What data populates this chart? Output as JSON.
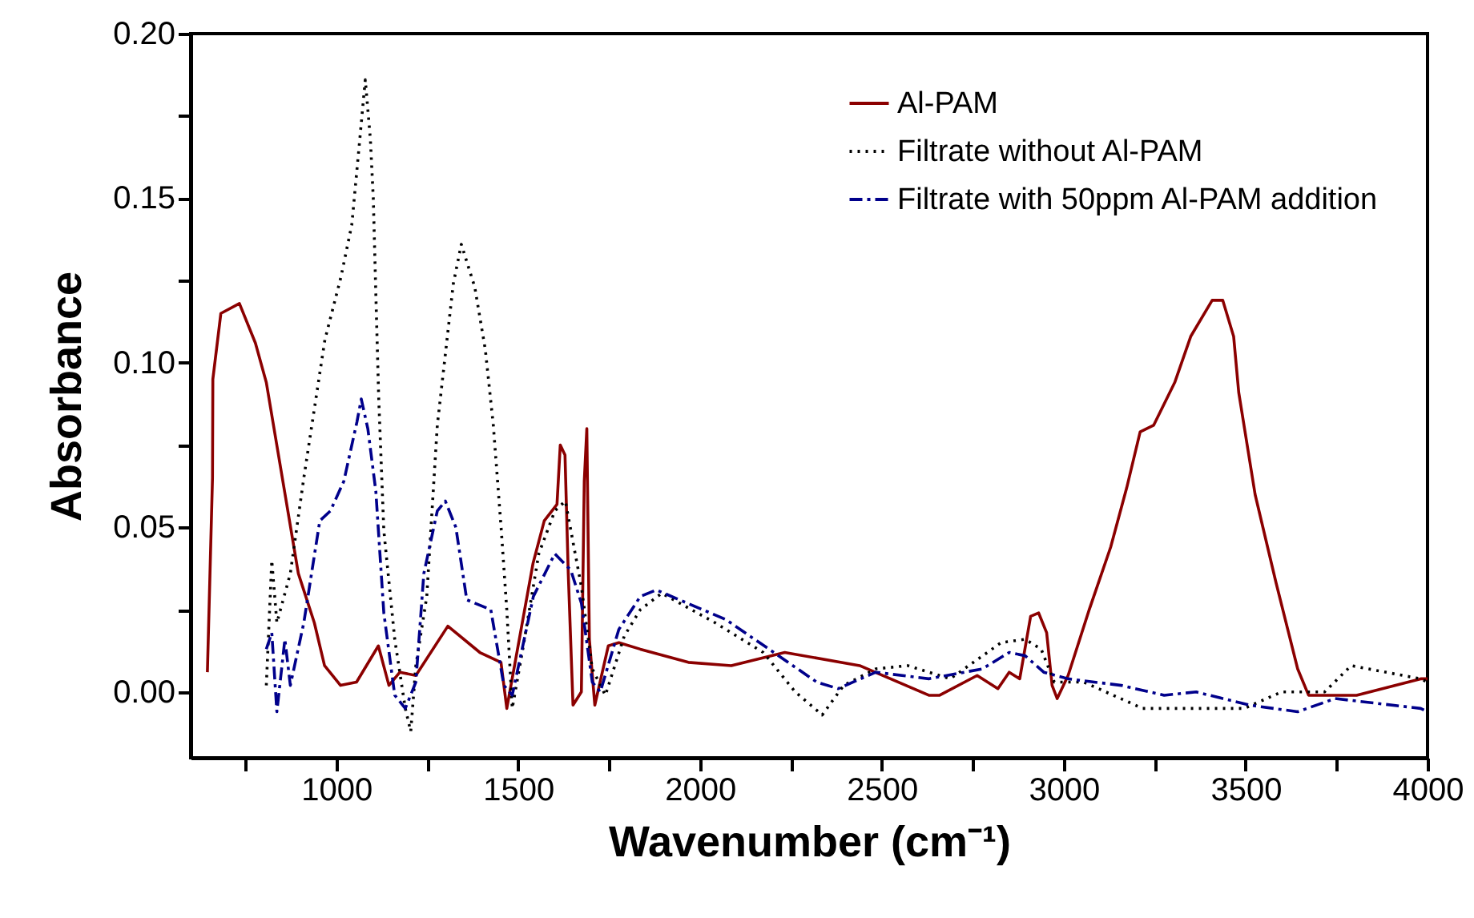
{
  "chart_data": {
    "type": "line",
    "xlabel": "Wavenumber (cm⁻¹)",
    "ylabel": "Absorbance",
    "xlim": [
      600,
      4000
    ],
    "ylim": [
      -0.02,
      0.2
    ],
    "xticks": [
      {
        "value": 750,
        "label": null
      },
      1000,
      {
        "value": 1250,
        "label": null
      },
      1500,
      {
        "value": 1750,
        "label": null
      },
      2000,
      {
        "value": 2250,
        "label": null
      },
      2500,
      {
        "value": 2750,
        "label": null
      },
      3000,
      {
        "value": 3250,
        "label": null
      },
      3500,
      {
        "value": 3750,
        "label": null
      },
      4000
    ],
    "yticks": [
      {
        "value": 0,
        "label": "0.00"
      },
      {
        "value": 0.025,
        "label": null
      },
      0.05,
      {
        "value": 0.075,
        "label": null
      },
      {
        "value": 0.1,
        "label": "0.10"
      },
      {
        "value": 0.125,
        "label": null
      },
      0.15,
      {
        "value": 0.175,
        "label": null
      },
      {
        "value": 0.2,
        "label": "0.20"
      }
    ],
    "grid": false,
    "legend": "top right",
    "marker": "none",
    "series": [
      {
        "name": "Al-PAM",
        "color": "#8b0000",
        "line_style": "solid",
        "x": [
          646,
          660,
          661,
          683,
          734,
          778,
          808,
          852,
          896,
          940,
          968,
          1012,
          1056,
          1116,
          1145,
          1175,
          1219,
          1307,
          1395,
          1453,
          1469,
          1541,
          1572,
          1607,
          1616,
          1629,
          1638,
          1651,
          1674,
          1682,
          1689,
          1696,
          1711,
          1748,
          1777,
          1836,
          1968,
          2086,
          2233,
          2439,
          2629,
          2659,
          2762,
          2819,
          2850,
          2879,
          2909,
          2931,
          2953,
          2968,
          2982,
          3012,
          3070,
          3129,
          3173,
          3210,
          3247,
          3305,
          3349,
          3408,
          3437,
          3467,
          3481,
          3526,
          3584,
          3643,
          3673,
          3717,
          3805,
          3981,
          4000
        ],
        "values": [
          0.006,
          0.065,
          0.095,
          0.115,
          0.118,
          0.106,
          0.094,
          0.065,
          0.036,
          0.021,
          0.008,
          0.002,
          0.003,
          0.014,
          0.002,
          0.006,
          0.005,
          0.02,
          0.012,
          0.009,
          -0.005,
          0.039,
          0.052,
          0.057,
          0.075,
          0.072,
          0.036,
          -0.004,
          0,
          0.064,
          0.08,
          0.016,
          -0.004,
          0.014,
          0.015,
          0.013,
          0.009,
          0.008,
          0.012,
          0.008,
          -0.001,
          -0.001,
          0.005,
          0.001,
          0.006,
          0.004,
          0.023,
          0.024,
          0.018,
          0.002,
          -0.002,
          0.005,
          0.025,
          0.044,
          0.062,
          0.079,
          0.081,
          0.094,
          0.108,
          0.119,
          0.119,
          0.108,
          0.091,
          0.06,
          0.033,
          0.007,
          -0.001,
          -0.001,
          -0.001,
          0.004,
          0.004
        ]
      },
      {
        "name": "Filtrate without Al-PAM",
        "color": "#000000",
        "line_style": "dotted",
        "x": [
          808,
          823,
          837,
          874,
          911,
          969,
          1013,
          1043,
          1065,
          1080,
          1094,
          1102,
          1109,
          1117,
          1131,
          1161,
          1190,
          1205,
          1219,
          1249,
          1278,
          1322,
          1344,
          1381,
          1410,
          1432,
          1454,
          1469,
          1484,
          1513,
          1557,
          1601,
          1630,
          1674,
          1704,
          1740,
          1792,
          1836,
          1895,
          2042,
          2174,
          2262,
          2336,
          2395,
          2483,
          2571,
          2688,
          2828,
          2894,
          2938,
          2974,
          3055,
          3217,
          3364,
          3496,
          3599,
          3717,
          3790,
          3981,
          4000
        ],
        "values": [
          0.002,
          0.04,
          0.021,
          0.036,
          0.065,
          0.107,
          0.126,
          0.142,
          0.168,
          0.186,
          0.168,
          0.15,
          0.121,
          0.089,
          0.049,
          0.016,
          -0.005,
          -0.012,
          0.008,
          0.029,
          0.081,
          0.124,
          0.136,
          0.123,
          0.104,
          0.081,
          0.049,
          0.025,
          -0.005,
          0.013,
          0.042,
          0.055,
          0.058,
          0.032,
          0.007,
          -0.001,
          0.017,
          0.025,
          0.03,
          0.021,
          0.012,
          0,
          -0.007,
          0.002,
          0.007,
          0.008,
          0.004,
          0.015,
          0.016,
          0.013,
          0.003,
          0.003,
          -0.005,
          -0.005,
          -0.005,
          0,
          0,
          0.008,
          0.004,
          0.003
        ]
      },
      {
        "name": "Filtrate with 50ppm Al-PAM addition",
        "color": "#00008b",
        "line_style": "dashed",
        "x": [
          808,
          823,
          837,
          859,
          874,
          911,
          955,
          984,
          1021,
          1057,
          1069,
          1087,
          1109,
          1131,
          1161,
          1190,
          1219,
          1241,
          1278,
          1300,
          1329,
          1359,
          1425,
          1461,
          1484,
          1542,
          1601,
          1645,
          1674,
          1704,
          1726,
          1777,
          1836,
          1880,
          2071,
          2203,
          2321,
          2380,
          2483,
          2629,
          2776,
          2850,
          2894,
          2945,
          3012,
          3158,
          3276,
          3364,
          3511,
          3643,
          3746,
          3981,
          4000
        ],
        "values": [
          0.013,
          0.018,
          -0.006,
          0.016,
          0.002,
          0.021,
          0.052,
          0.055,
          0.064,
          0.082,
          0.089,
          0.08,
          0.061,
          0.024,
          -0.001,
          -0.005,
          0.003,
          0.036,
          0.055,
          0.058,
          0.05,
          0.028,
          0.025,
          0.002,
          -0.001,
          0.029,
          0.042,
          0.037,
          0.027,
          0.003,
          0,
          0.019,
          0.029,
          0.031,
          0.022,
          0.012,
          0.003,
          0.001,
          0.006,
          0.004,
          0.007,
          0.012,
          0.011,
          0.006,
          0.004,
          0.002,
          -0.001,
          0,
          -0.004,
          -0.006,
          -0.002,
          -0.005,
          -0.006
        ]
      }
    ]
  }
}
